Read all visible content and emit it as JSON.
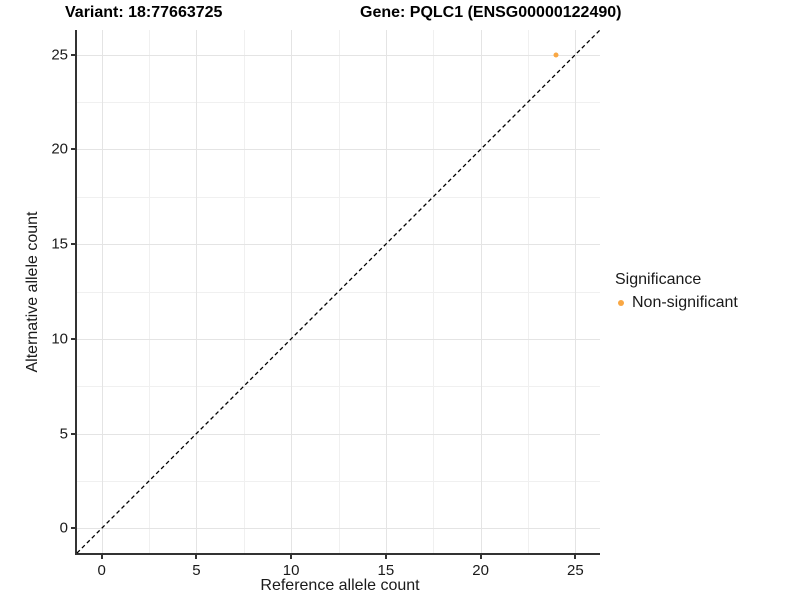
{
  "titles": {
    "variant": "Variant: 18:77663725",
    "gene": "Gene: PQLC1 (ENSG00000122490)"
  },
  "chart_data": {
    "type": "scatter",
    "title": "Variant: 18:77663725   Gene: PQLC1 (ENSG00000122490)",
    "xlabel": "Reference allele count",
    "ylabel": "Alternative allele count",
    "xlim": [
      -1.3,
      26.3
    ],
    "ylim": [
      -1.3,
      26.3
    ],
    "major_ticks": [
      0,
      5,
      10,
      15,
      20,
      25
    ],
    "minor_ticks": [
      2.5,
      7.5,
      12.5,
      17.5,
      22.5
    ],
    "tick_labels": [
      "0",
      "5",
      "10",
      "15",
      "20",
      "25"
    ],
    "grid": true,
    "points": [
      {
        "x": 24,
        "y": 25,
        "series": "Non-significant"
      }
    ],
    "reference_line": {
      "kind": "identity-y-equals-x",
      "style": "dashed",
      "color": "#000000"
    },
    "legend": {
      "title": "Significance",
      "position": "right",
      "items": [
        {
          "label": "Non-significant",
          "color": "#F9A743"
        }
      ]
    }
  },
  "colors": {
    "point": "#F9A743",
    "grid_major": "#e4e4e4",
    "grid_minor": "#f0f0f0",
    "axis_line": "#333333",
    "background": "#ffffff"
  }
}
